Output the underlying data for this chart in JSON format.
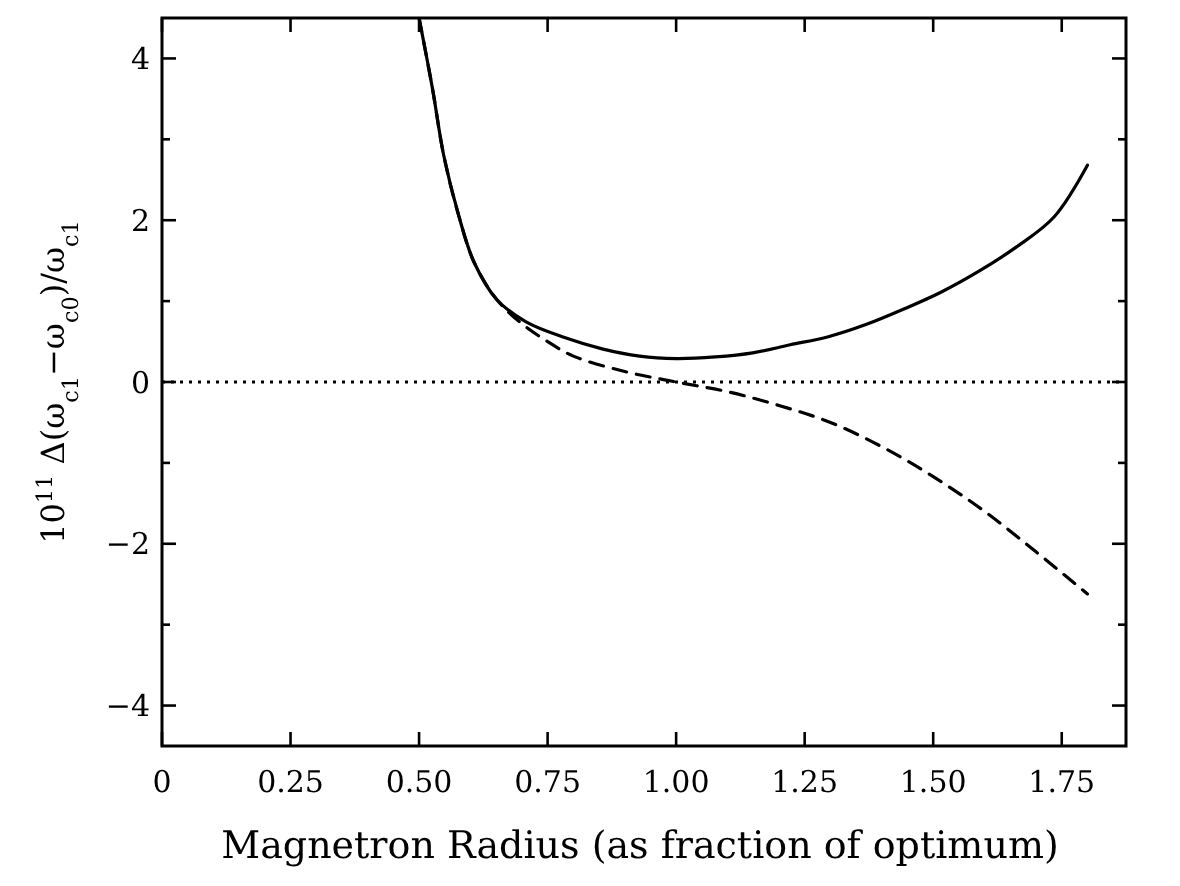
{
  "chart_data": {
    "type": "line",
    "xlabel": "Magnetron Radius (as fraction of optimum)",
    "ylabel": "10$^{11}$ Δ(ω$_{c1}$−ω$_{c0}$)/ω$_{c1}$",
    "xlim": [
      0,
      1.875
    ],
    "xticks": [
      0,
      0.25,
      {
        "value": 0.5,
        "label": "0.50"
      },
      0.75,
      {
        "value": 1,
        "label": "1.00"
      },
      1.25,
      {
        "value": 1.5,
        "label": "1.50"
      },
      1.75
    ],
    "ylim": [
      -4.5,
      4.5
    ],
    "yticks": [
      -4,
      {
        "value": -3,
        "label": null
      },
      -2,
      {
        "value": -1,
        "label": null
      },
      0,
      {
        "value": 1,
        "label": null
      },
      2,
      {
        "value": 3,
        "label": null
      },
      4
    ],
    "grid": false,
    "marker": "none",
    "ref_lines": [
      {
        "axis": "y",
        "value": 0,
        "line_style": "dotted",
        "color": "#000000"
      }
    ],
    "series": [
      {
        "color": "#000000",
        "line_style": "solid",
        "x": [
          0.5,
          0.526,
          0.548,
          0.577,
          0.607,
          0.651,
          0.709,
          0.783,
          0.856,
          0.929,
          1.0,
          1.076,
          1.149,
          1.222,
          1.296,
          1.369,
          1.442,
          1.515,
          1.589,
          1.662,
          1.735,
          1.8
        ],
        "values": [
          4.5,
          3.63,
          2.8,
          2.06,
          1.48,
          1.02,
          0.74,
          0.55,
          0.41,
          0.32,
          0.29,
          0.31,
          0.36,
          0.46,
          0.56,
          0.71,
          0.9,
          1.11,
          1.37,
          1.67,
          2.04,
          2.68
        ]
      },
      {
        "color": "#000000",
        "line_style": "dashed",
        "x": [
          0.5,
          0.526,
          0.548,
          0.577,
          0.607,
          0.651,
          0.7,
          0.75,
          0.8,
          0.9,
          1.0,
          1.1,
          1.2,
          1.3,
          1.4,
          1.5,
          1.6,
          1.7,
          1.8
        ],
        "values": [
          4.5,
          3.63,
          2.8,
          2.06,
          1.48,
          1.02,
          0.72,
          0.5,
          0.32,
          0.13,
          0,
          -0.12,
          -0.29,
          -0.5,
          -0.8,
          -1.17,
          -1.6,
          -2.1,
          -2.62
        ]
      }
    ]
  }
}
